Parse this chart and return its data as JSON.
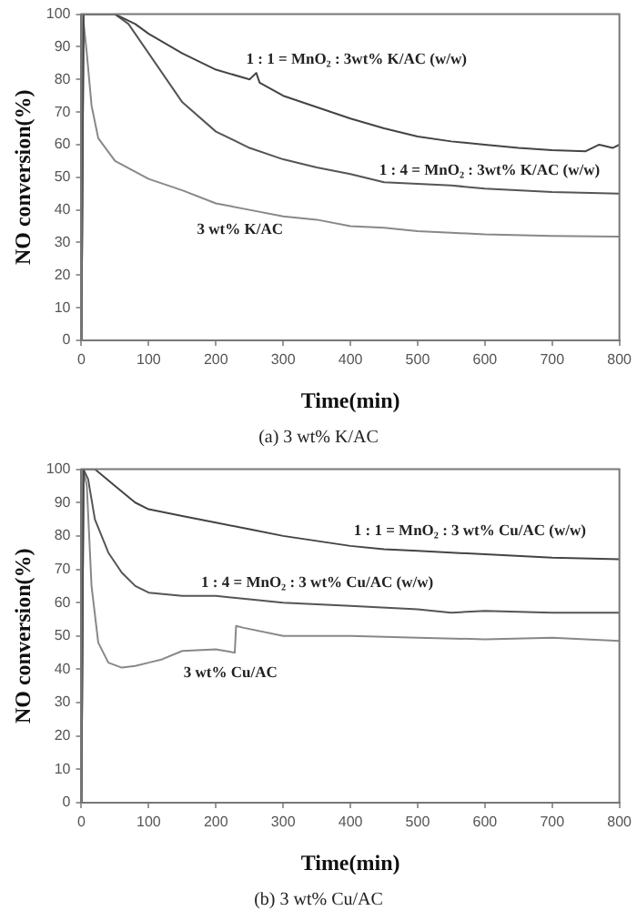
{
  "chart_data": [
    {
      "type": "line",
      "xlabel": "Time(min)",
      "ylabel": "NO conversion(%)",
      "annotations": [
        "(a)  3  wt%  K/AC"
      ],
      "xlim": [
        0,
        800
      ],
      "xticks": [
        0,
        100,
        200,
        300,
        400,
        500,
        600,
        700,
        800
      ],
      "ylim": [
        0,
        100
      ],
      "yticks": [
        0,
        10,
        20,
        30,
        40,
        50,
        60,
        70,
        80,
        90,
        100
      ],
      "grid": false,
      "legend": false,
      "marker": "none",
      "line_style": "solid",
      "series": [
        {
          "name": "1 : 1 = MnO₂ : 3wt% K/AC (w/w)",
          "color": "#444444",
          "x": [
            0,
            3,
            50,
            80,
            100,
            150,
            200,
            250,
            260,
            265,
            300,
            350,
            400,
            450,
            500,
            550,
            600,
            650,
            700,
            750,
            770,
            790,
            800
          ],
          "values": [
            0,
            100,
            100,
            97,
            94,
            88,
            83,
            80,
            82,
            79,
            75,
            71.5,
            68,
            65,
            62.5,
            61,
            60,
            59,
            58.3,
            58,
            60,
            59,
            60
          ]
        },
        {
          "name": "1 : 4 = MnO₂ : 3wt% K/AC (w/w)",
          "color": "#555555",
          "x": [
            0,
            3,
            50,
            70,
            100,
            150,
            200,
            250,
            300,
            350,
            400,
            450,
            500,
            550,
            600,
            700,
            800
          ],
          "values": [
            0,
            100,
            100,
            97,
            88,
            73,
            64,
            59,
            55.5,
            53,
            51,
            48.5,
            48,
            47.5,
            46.5,
            45.5,
            45
          ]
        },
        {
          "name": "3 wt% K/AC",
          "color": "#888888",
          "x": [
            0,
            3,
            8,
            15,
            25,
            50,
            100,
            150,
            200,
            250,
            300,
            350,
            400,
            450,
            500,
            550,
            600,
            700,
            800
          ],
          "values": [
            0,
            98,
            88,
            72,
            62,
            55,
            49.5,
            46,
            42,
            40,
            38,
            37,
            35,
            34.5,
            33.5,
            33,
            32.5,
            32,
            31.8
          ]
        }
      ]
    },
    {
      "type": "line",
      "xlabel": "Time(min)",
      "ylabel": "NO conversion(%)",
      "annotations": [
        "(b)  3  wt%  Cu/AC"
      ],
      "xlim": [
        0,
        800
      ],
      "xticks": [
        0,
        100,
        200,
        300,
        400,
        500,
        600,
        700,
        800
      ],
      "ylim": [
        0,
        100
      ],
      "yticks": [
        0,
        10,
        20,
        30,
        40,
        50,
        60,
        70,
        80,
        90,
        100
      ],
      "grid": false,
      "legend": false,
      "marker": "none",
      "line_style": "solid",
      "series": [
        {
          "name": "1 : 1 = MnO₂ : 3 wt% Cu/AC (w/w)",
          "color": "#444444",
          "x": [
            0,
            3,
            20,
            50,
            80,
            100,
            150,
            200,
            250,
            300,
            350,
            400,
            450,
            500,
            600,
            700,
            800
          ],
          "values": [
            0,
            100,
            100,
            95,
            90,
            88,
            86,
            84,
            82,
            80,
            78.5,
            77,
            76,
            75.5,
            74.5,
            73.5,
            73
          ]
        },
        {
          "name": "1 : 4 = MnO₂ : 3 wt% Cu/AC (w/w)",
          "color": "#555555",
          "x": [
            0,
            3,
            10,
            20,
            40,
            60,
            80,
            100,
            150,
            200,
            250,
            300,
            400,
            500,
            550,
            600,
            700,
            800
          ],
          "values": [
            0,
            100,
            97,
            85,
            75,
            69,
            65,
            63,
            62,
            62,
            61,
            60,
            59,
            58,
            57,
            57.5,
            57,
            57
          ]
        },
        {
          "name": "3 wt% Cu/AC",
          "color": "#888888",
          "x": [
            0,
            3,
            8,
            15,
            25,
            40,
            60,
            80,
            100,
            120,
            150,
            200,
            228,
            230,
            240,
            300,
            400,
            500,
            600,
            700,
            800
          ],
          "values": [
            0,
            100,
            95,
            65,
            48,
            42,
            40.5,
            41,
            42,
            43,
            45.5,
            46,
            45,
            53,
            52.5,
            50,
            50,
            49.5,
            49,
            49.5,
            48.5
          ]
        }
      ]
    }
  ]
}
